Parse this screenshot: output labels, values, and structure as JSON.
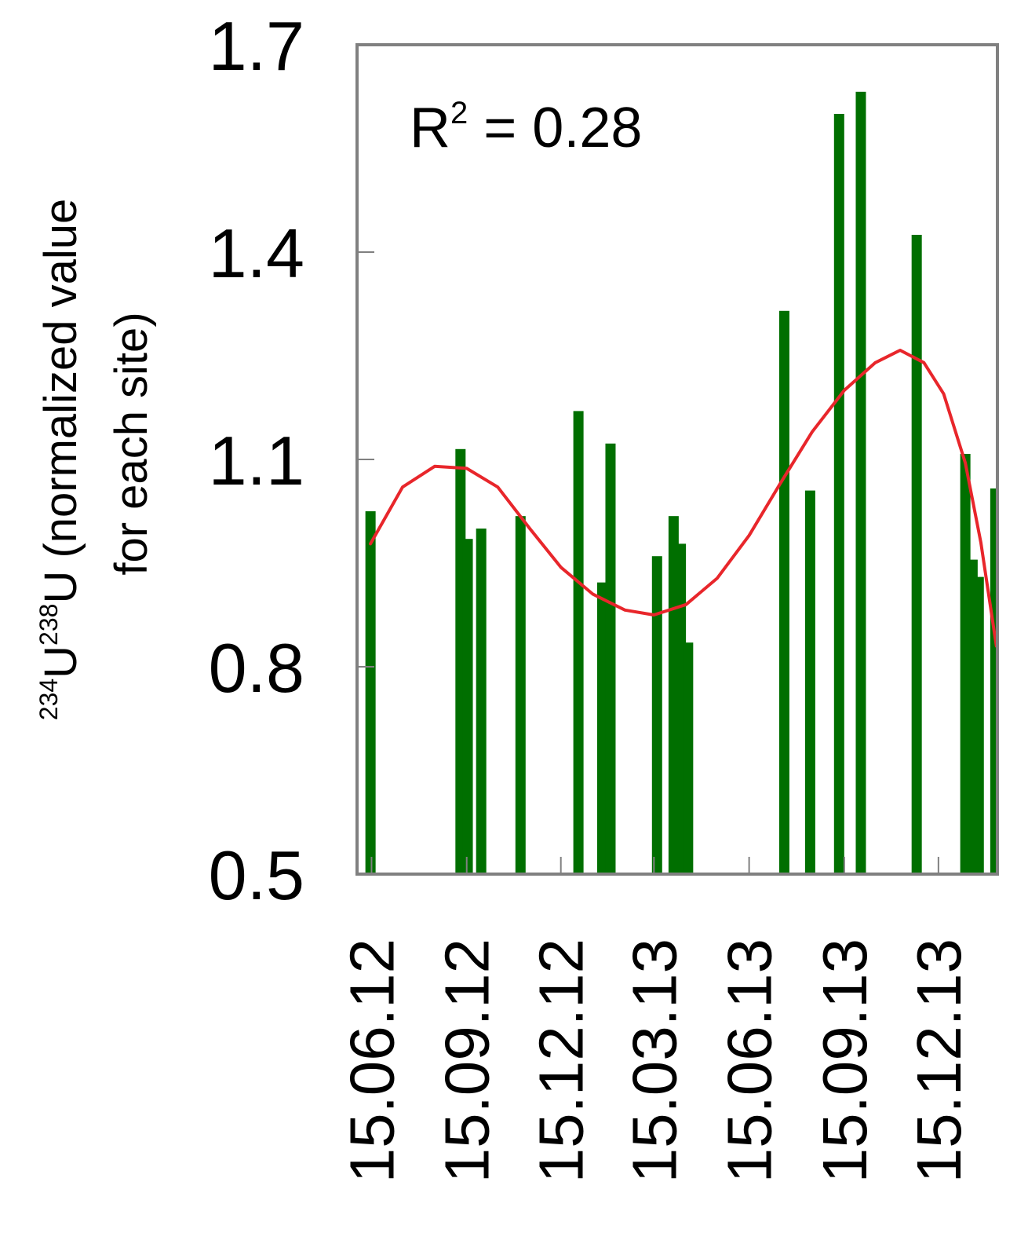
{
  "chart_data": {
    "type": "bar",
    "title": "",
    "ylabel": {
      "sup1": "234",
      "base1": "U",
      "sup2": "238",
      "base2": "U",
      "line1_rest": " (normalized value",
      "line2": "for each site)"
    },
    "xlabel": "",
    "ylim": [
      0.5,
      1.7
    ],
    "yticks": [
      {
        "value": 0.5,
        "label": "0.5"
      },
      {
        "value": 0.8,
        "label": "0.8"
      },
      {
        "value": 1.1,
        "label": "1.1"
      },
      {
        "value": 1.4,
        "label": "1.4"
      },
      {
        "value": 1.7,
        "label": "1.7"
      }
    ],
    "xlim": [
      "2012-06-01",
      "2014-02-10"
    ],
    "xticks": [
      {
        "date": "2012-06-15",
        "label": "15.06.12"
      },
      {
        "date": "2012-09-15",
        "label": "15.09.12"
      },
      {
        "date": "2012-12-15",
        "label": "15.12.12"
      },
      {
        "date": "2013-03-15",
        "label": "15.03.13"
      },
      {
        "date": "2013-06-15",
        "label": "15.06.13"
      },
      {
        "date": "2013-09-15",
        "label": "15.09.13"
      },
      {
        "date": "2013-12-15",
        "label": "15.12.13"
      }
    ],
    "annotation": {
      "base": "R",
      "sup": "2",
      "rest": " = 0.28"
    },
    "bars": {
      "color": "#006f00",
      "points": [
        {
          "date": "2012-06-14",
          "value": 1.025
        },
        {
          "date": "2012-09-09",
          "value": 1.115
        },
        {
          "date": "2012-09-16",
          "value": 0.985
        },
        {
          "date": "2012-09-29",
          "value": 1.0
        },
        {
          "date": "2012-11-06",
          "value": 1.018
        },
        {
          "date": "2013-01-01",
          "value": 1.17
        },
        {
          "date": "2013-01-24",
          "value": 0.922
        },
        {
          "date": "2013-02-01",
          "value": 1.123
        },
        {
          "date": "2013-03-18",
          "value": 0.96
        },
        {
          "date": "2013-04-03",
          "value": 1.018
        },
        {
          "date": "2013-04-10",
          "value": 0.978
        },
        {
          "date": "2013-04-17",
          "value": 0.835
        },
        {
          "date": "2013-07-19",
          "value": 1.315
        },
        {
          "date": "2013-08-13",
          "value": 1.055
        },
        {
          "date": "2013-09-10",
          "value": 1.6
        },
        {
          "date": "2013-10-01",
          "value": 1.632
        },
        {
          "date": "2013-11-24",
          "value": 1.425
        },
        {
          "date": "2014-01-10",
          "value": 1.108
        },
        {
          "date": "2014-01-17",
          "value": 0.955
        },
        {
          "date": "2014-01-23",
          "value": 0.93
        },
        {
          "date": "2014-02-08",
          "value": 1.058
        }
      ]
    },
    "trendline": {
      "color": "#e8262b",
      "points": [
        {
          "date": "2012-06-14",
          "value": 0.978
        },
        {
          "date": "2012-07-15",
          "value": 1.06
        },
        {
          "date": "2012-08-15",
          "value": 1.09
        },
        {
          "date": "2012-09-15",
          "value": 1.087
        },
        {
          "date": "2012-10-15",
          "value": 1.06
        },
        {
          "date": "2012-11-15",
          "value": 1.0
        },
        {
          "date": "2012-12-15",
          "value": 0.944
        },
        {
          "date": "2013-01-15",
          "value": 0.905
        },
        {
          "date": "2013-02-15",
          "value": 0.882
        },
        {
          "date": "2013-03-15",
          "value": 0.875
        },
        {
          "date": "2013-04-15",
          "value": 0.89
        },
        {
          "date": "2013-05-15",
          "value": 0.928
        },
        {
          "date": "2013-06-15",
          "value": 0.99
        },
        {
          "date": "2013-07-15",
          "value": 1.065
        },
        {
          "date": "2013-08-15",
          "value": 1.14
        },
        {
          "date": "2013-09-15",
          "value": 1.2
        },
        {
          "date": "2013-10-15",
          "value": 1.24
        },
        {
          "date": "2013-11-08",
          "value": 1.258
        },
        {
          "date": "2013-12-01",
          "value": 1.24
        },
        {
          "date": "2013-12-20",
          "value": 1.195
        },
        {
          "date": "2014-01-10",
          "value": 1.095
        },
        {
          "date": "2014-01-25",
          "value": 0.98
        },
        {
          "date": "2014-02-09",
          "value": 0.83
        }
      ]
    },
    "grid": false,
    "legend": "none",
    "frame_color": "#808080"
  }
}
